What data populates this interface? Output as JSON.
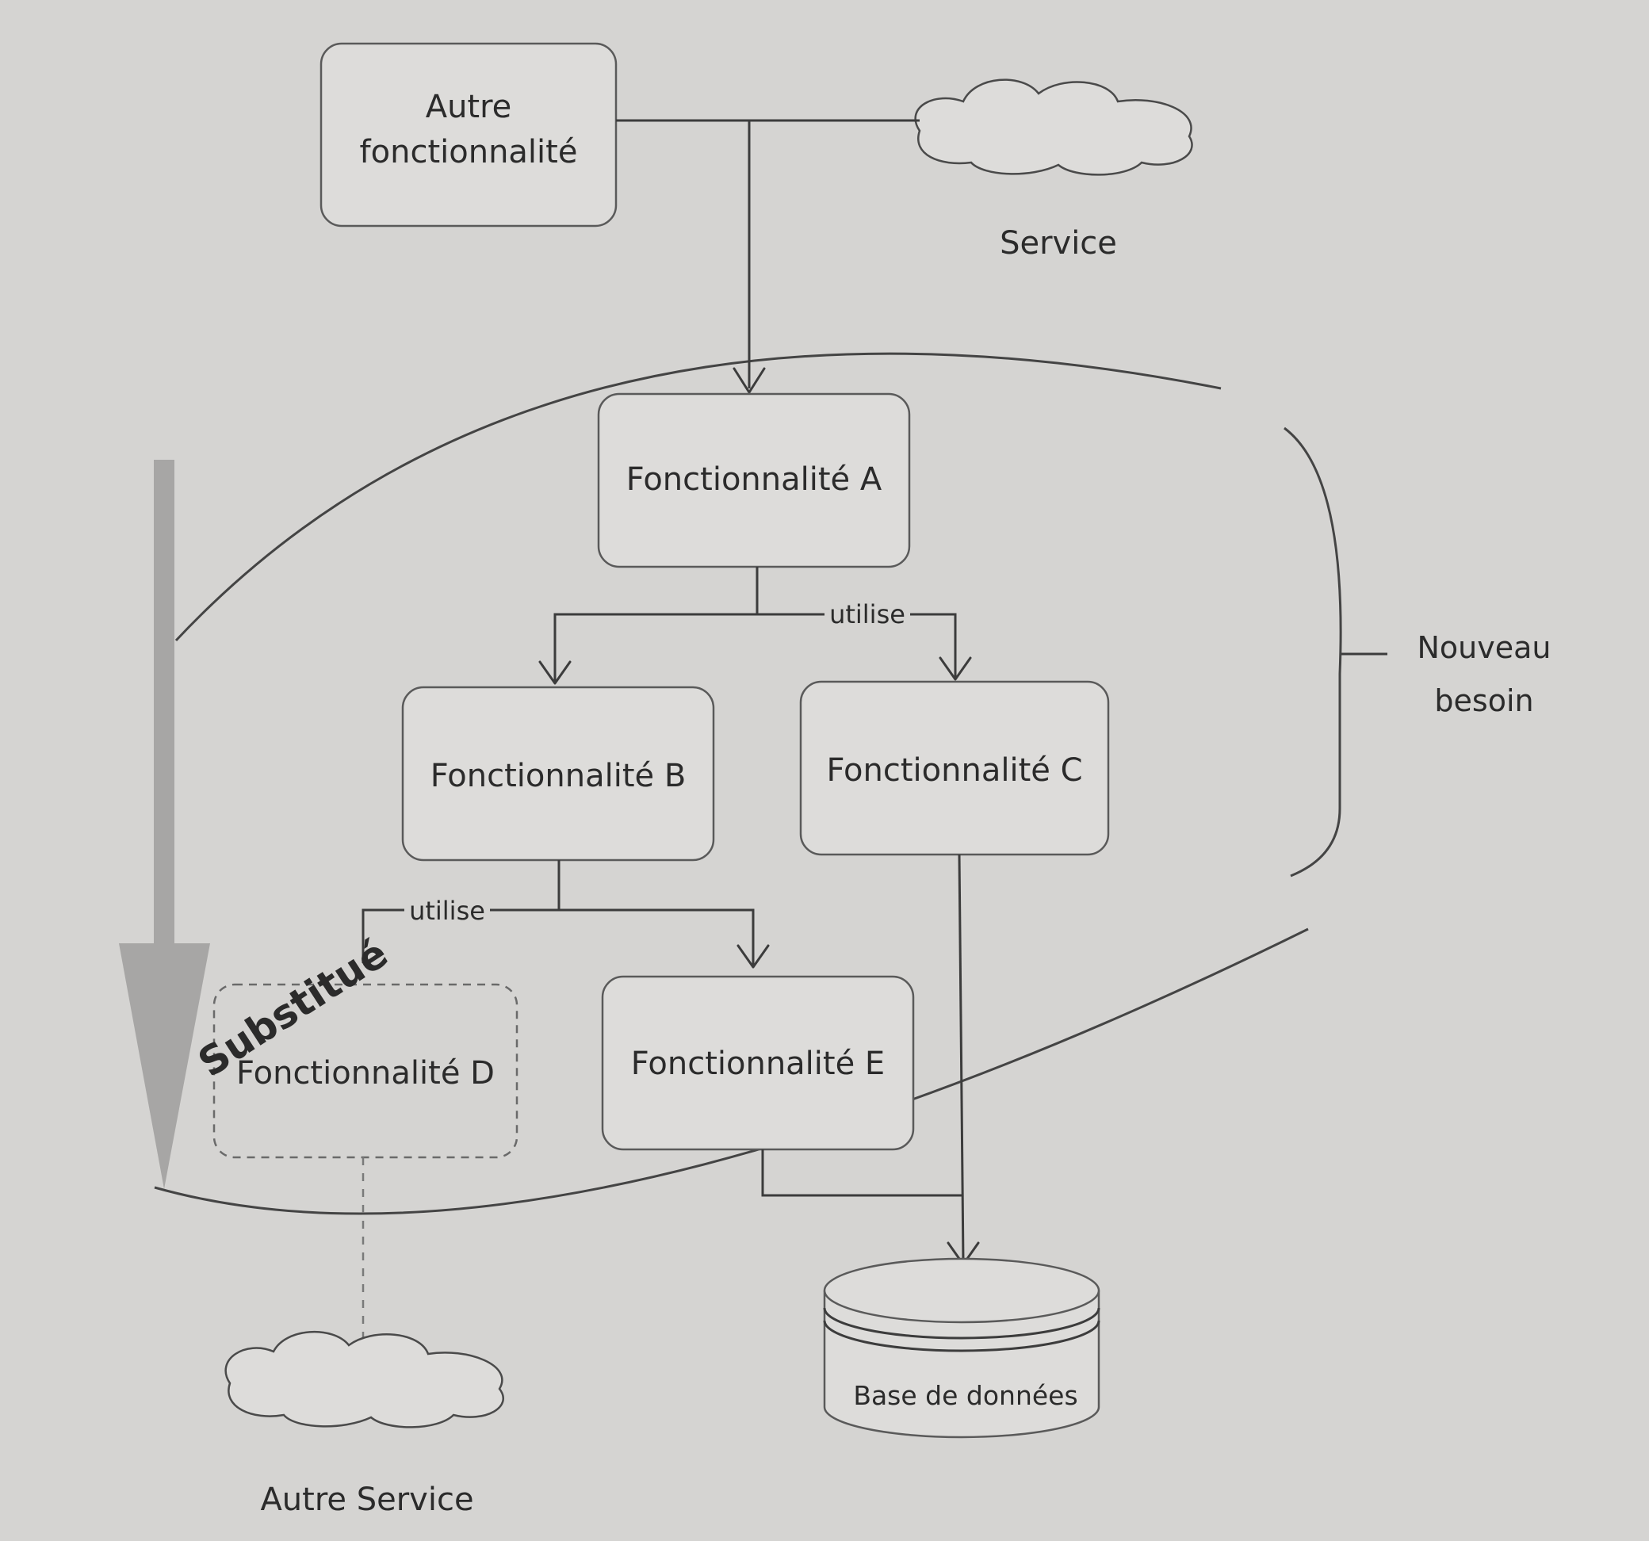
{
  "nodes": {
    "autre_fonctionnalite": {
      "line1": "Autre",
      "line2": "fonctionnalité"
    },
    "service": "Service",
    "fonctionnalite_a": "Fonctionnalité A",
    "fonctionnalite_b": "Fonctionnalité B",
    "fonctionnalite_c": "Fonctionnalité C",
    "fonctionnalite_d": "Fonctionnalité D",
    "fonctionnalite_e": "Fonctionnalité E",
    "base_de_donnees": "Base de données",
    "autre_service": "Autre Service"
  },
  "edges": {
    "a_uses": "utilise",
    "b_uses": "utilise"
  },
  "annotations": {
    "nouveau_besoin": {
      "line1": "Nouveau",
      "line2": "besoin"
    },
    "substitue": "Substitué"
  }
}
